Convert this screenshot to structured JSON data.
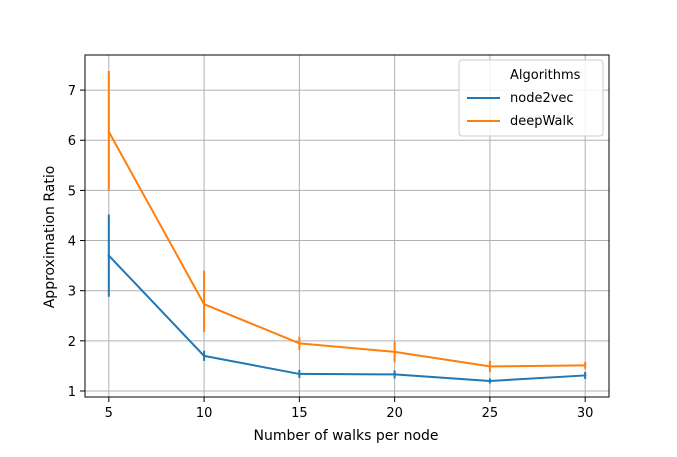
{
  "chart_data": {
    "type": "line",
    "title": "",
    "xlabel": "Number of walks per node",
    "ylabel": "Approximation Ratio",
    "x": [
      5,
      10,
      15,
      20,
      25,
      30
    ],
    "xticks": [
      5,
      10,
      15,
      20,
      25,
      30
    ],
    "yticks": [
      1,
      2,
      3,
      4,
      5,
      6,
      7
    ],
    "xlim": [
      3.75,
      31.25
    ],
    "ylim": [
      0.88,
      7.7
    ],
    "grid": true,
    "legend": {
      "title": "Algorithms",
      "position": "top-right"
    },
    "series": [
      {
        "name": "node2vec",
        "color": "#1f77b4",
        "values": [
          3.7,
          1.7,
          1.34,
          1.33,
          1.2,
          1.31
        ],
        "error_low": [
          2.88,
          1.6,
          1.26,
          1.25,
          1.15,
          1.24
        ],
        "error_high": [
          4.52,
          1.8,
          1.42,
          1.41,
          1.25,
          1.38
        ]
      },
      {
        "name": "deepWalk",
        "color": "#ff7f0e",
        "values": [
          6.17,
          2.73,
          1.95,
          1.78,
          1.49,
          1.51
        ],
        "error_low": [
          5.0,
          2.18,
          1.82,
          1.57,
          1.38,
          1.44
        ],
        "error_high": [
          7.38,
          3.4,
          2.08,
          1.99,
          1.6,
          1.58
        ]
      }
    ]
  }
}
